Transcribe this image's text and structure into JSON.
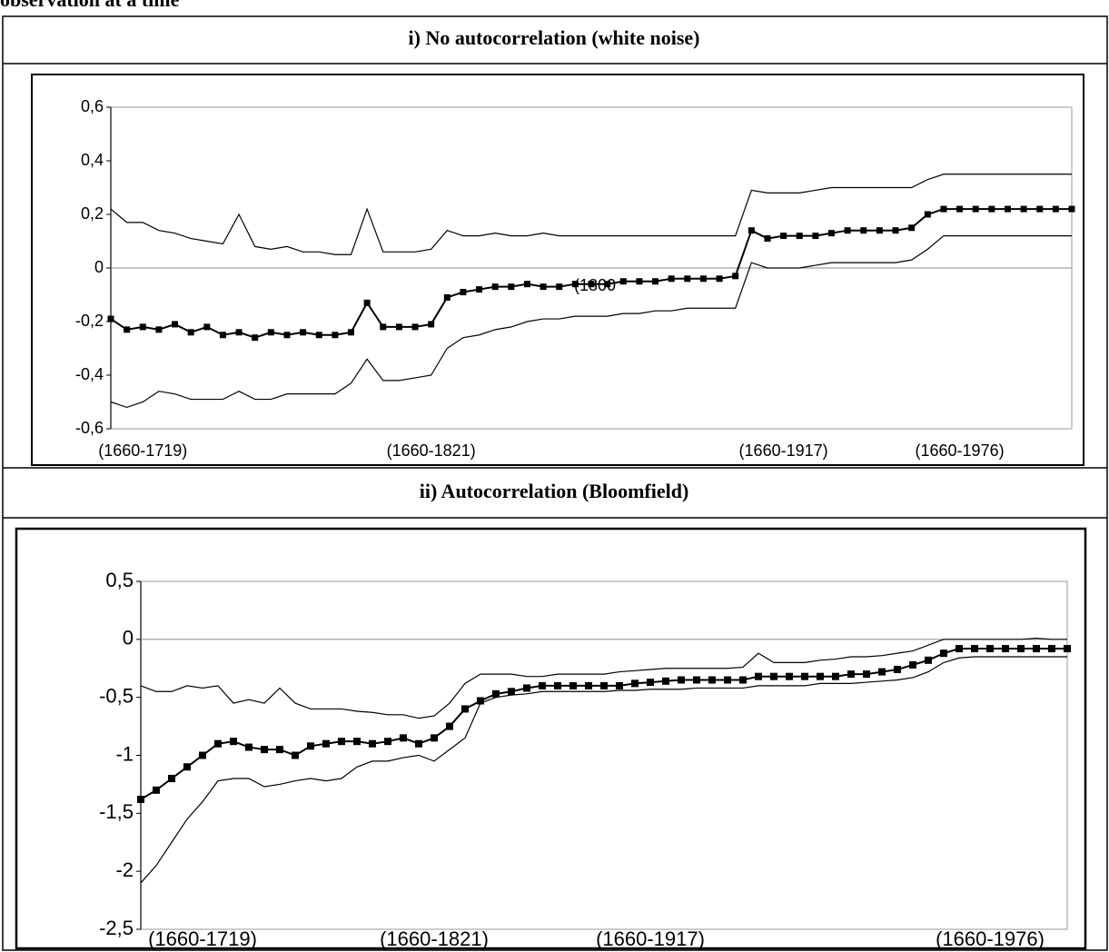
{
  "caption": "observation at a time",
  "chart_data": [
    {
      "type": "line",
      "title": "i)  No autocorrelation (white noise)",
      "annotation": "(1800",
      "categories": [
        null,
        null,
        "(1660-1719)",
        null,
        null,
        null,
        null,
        null,
        null,
        null,
        null,
        null,
        null,
        null,
        null,
        null,
        null,
        null,
        null,
        null,
        "(1660-1821)",
        null,
        null,
        null,
        null,
        null,
        null,
        null,
        null,
        null,
        null,
        null,
        null,
        null,
        null,
        null,
        null,
        null,
        null,
        null,
        null,
        null,
        "(1660-1917)",
        null,
        null,
        null,
        null,
        null,
        null,
        null,
        null,
        null,
        null,
        "(1660-1976)",
        null,
        null,
        null,
        null,
        null,
        null,
        null
      ],
      "ylim": [
        -0.6,
        0.6
      ],
      "yticks": [
        {
          "value": -0.6,
          "label": "-0,6"
        },
        {
          "value": -0.4,
          "label": "-0,4"
        },
        {
          "value": -0.2,
          "label": "-0,2"
        },
        0,
        {
          "value": 0.2,
          "label": "0,2"
        },
        {
          "value": 0.4,
          "label": "0,4"
        },
        {
          "value": 0.6,
          "label": "0,6"
        }
      ],
      "grid": false,
      "series": [
        {
          "color": "#000000",
          "values": [
            0.22,
            0.17,
            0.17,
            0.14,
            0.13,
            0.11,
            0.1,
            0.09,
            0.2,
            0.08,
            0.07,
            0.08,
            0.06,
            0.06,
            0.05,
            0.05,
            0.22,
            0.06,
            0.06,
            0.06,
            0.07,
            0.14,
            0.12,
            0.12,
            0.13,
            0.12,
            0.12,
            0.13,
            0.12,
            0.12,
            0.12,
            0.12,
            0.12,
            0.12,
            0.12,
            0.12,
            0.12,
            0.12,
            0.12,
            0.12,
            0.29,
            0.28,
            0.28,
            0.28,
            0.29,
            0.3,
            0.3,
            0.3,
            0.3,
            0.3,
            0.3,
            0.33,
            0.35,
            0.35,
            0.35,
            0.35,
            0.35,
            0.35,
            0.35,
            0.35,
            0.35
          ]
        },
        {
          "color": "#000000",
          "marker": "square",
          "values": [
            -0.19,
            -0.23,
            -0.22,
            -0.23,
            -0.21,
            -0.24,
            -0.22,
            -0.25,
            -0.24,
            -0.26,
            -0.24,
            -0.25,
            -0.24,
            -0.25,
            -0.25,
            -0.24,
            -0.13,
            -0.22,
            -0.22,
            -0.22,
            -0.21,
            -0.11,
            -0.09,
            -0.08,
            -0.07,
            -0.07,
            -0.06,
            -0.07,
            -0.07,
            -0.06,
            -0.06,
            -0.06,
            -0.05,
            -0.05,
            -0.05,
            -0.04,
            -0.04,
            -0.04,
            -0.04,
            -0.03,
            0.14,
            0.11,
            0.12,
            0.12,
            0.12,
            0.13,
            0.14,
            0.14,
            0.14,
            0.14,
            0.15,
            0.2,
            0.22,
            0.22,
            0.22,
            0.22,
            0.22,
            0.22,
            0.22,
            0.22,
            0.22
          ]
        },
        {
          "color": "#000000",
          "values": [
            -0.5,
            -0.52,
            -0.5,
            -0.46,
            -0.47,
            -0.49,
            -0.49,
            -0.49,
            -0.46,
            -0.49,
            -0.49,
            -0.47,
            -0.47,
            -0.47,
            -0.47,
            -0.43,
            -0.34,
            -0.42,
            -0.42,
            -0.41,
            -0.4,
            -0.3,
            -0.26,
            -0.25,
            -0.23,
            -0.22,
            -0.2,
            -0.19,
            -0.19,
            -0.18,
            -0.18,
            -0.18,
            -0.17,
            -0.17,
            -0.16,
            -0.16,
            -0.15,
            -0.15,
            -0.15,
            -0.15,
            0.02,
            0.0,
            0.0,
            0.0,
            0.01,
            0.02,
            0.02,
            0.02,
            0.02,
            0.02,
            0.03,
            0.07,
            0.12,
            0.12,
            0.12,
            0.12,
            0.12,
            0.12,
            0.12,
            0.12,
            0.12
          ]
        }
      ]
    },
    {
      "type": "line",
      "title": "ii) Autocorrelation (Bloomfield)",
      "categories": [
        null,
        null,
        null,
        null,
        "(1660-1719)",
        null,
        null,
        null,
        null,
        null,
        null,
        null,
        null,
        null,
        null,
        null,
        null,
        null,
        null,
        "(1660-1821)",
        null,
        null,
        null,
        null,
        null,
        null,
        null,
        null,
        null,
        null,
        null,
        null,
        null,
        "(1660-1917)",
        null,
        null,
        null,
        null,
        null,
        null,
        null,
        null,
        null,
        null,
        null,
        null,
        null,
        null,
        null,
        null,
        null,
        null,
        null,
        null,
        null,
        "(1660-1976)",
        null,
        null,
        null,
        null,
        null
      ],
      "ylim": [
        -2.5,
        0.5
      ],
      "yticks": [
        {
          "value": -2.5,
          "label": "-2,5"
        },
        -2,
        {
          "value": -1.5,
          "label": "-1,5"
        },
        -1,
        {
          "value": -0.5,
          "label": "-0,5"
        },
        0,
        {
          "value": 0.5,
          "label": "0,5"
        }
      ],
      "grid": false,
      "series": [
        {
          "color": "#000000",
          "values": [
            -0.4,
            -0.45,
            -0.45,
            -0.4,
            -0.42,
            -0.4,
            -0.55,
            -0.52,
            -0.55,
            -0.42,
            -0.55,
            -0.6,
            -0.6,
            -0.6,
            -0.62,
            -0.63,
            -0.65,
            -0.65,
            -0.68,
            -0.66,
            -0.55,
            -0.38,
            -0.3,
            -0.3,
            -0.3,
            -0.32,
            -0.32,
            -0.3,
            -0.3,
            -0.3,
            -0.3,
            -0.28,
            -0.27,
            -0.26,
            -0.25,
            -0.25,
            -0.25,
            -0.25,
            -0.25,
            -0.24,
            -0.12,
            -0.2,
            -0.2,
            -0.2,
            -0.18,
            -0.17,
            -0.15,
            -0.15,
            -0.14,
            -0.12,
            -0.1,
            -0.05,
            0.0,
            0.0,
            0.0,
            0.0,
            0.0,
            0.0,
            0.01,
            0.0,
            0.0
          ]
        },
        {
          "color": "#000000",
          "marker": "square",
          "values": [
            -1.38,
            -1.3,
            -1.2,
            -1.1,
            -1.0,
            -0.9,
            -0.88,
            -0.93,
            -0.95,
            -0.95,
            -1.0,
            -0.92,
            -0.9,
            -0.88,
            -0.88,
            -0.9,
            -0.88,
            -0.85,
            -0.9,
            -0.85,
            -0.75,
            -0.6,
            -0.53,
            -0.47,
            -0.45,
            -0.42,
            -0.4,
            -0.4,
            -0.4,
            -0.4,
            -0.4,
            -0.4,
            -0.38,
            -0.37,
            -0.36,
            -0.35,
            -0.35,
            -0.35,
            -0.35,
            -0.35,
            -0.32,
            -0.32,
            -0.32,
            -0.32,
            -0.32,
            -0.32,
            -0.3,
            -0.3,
            -0.28,
            -0.26,
            -0.22,
            -0.18,
            -0.12,
            -0.08,
            -0.08,
            -0.08,
            -0.08,
            -0.08,
            -0.08,
            -0.08,
            -0.08
          ]
        },
        {
          "color": "#000000",
          "values": [
            -2.1,
            -1.95,
            -1.75,
            -1.55,
            -1.4,
            -1.22,
            -1.2,
            -1.2,
            -1.27,
            -1.25,
            -1.22,
            -1.2,
            -1.22,
            -1.2,
            -1.1,
            -1.05,
            -1.05,
            -1.02,
            -1.0,
            -1.05,
            -0.95,
            -0.85,
            -0.55,
            -0.5,
            -0.48,
            -0.47,
            -0.45,
            -0.45,
            -0.45,
            -0.45,
            -0.45,
            -0.44,
            -0.44,
            -0.43,
            -0.43,
            -0.43,
            -0.42,
            -0.42,
            -0.42,
            -0.42,
            -0.4,
            -0.4,
            -0.4,
            -0.4,
            -0.38,
            -0.38,
            -0.38,
            -0.37,
            -0.36,
            -0.35,
            -0.33,
            -0.28,
            -0.2,
            -0.16,
            -0.15,
            -0.15,
            -0.15,
            -0.15,
            -0.15,
            -0.15,
            -0.15
          ]
        }
      ]
    }
  ]
}
